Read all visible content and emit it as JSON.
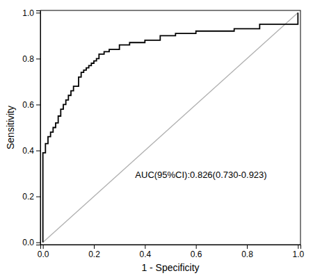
{
  "chart_data": {
    "type": "line",
    "xlabel": "1 - Specificity",
    "ylabel": "Sensitivity",
    "xlim": [
      -0.01,
      1.01
    ],
    "ylim": [
      -0.01,
      1.01
    ],
    "xticks": [
      {
        "value": 0.0,
        "label": "0.0"
      },
      0.2,
      0.4,
      0.6,
      0.8,
      {
        "value": 1.0,
        "label": "1.0"
      }
    ],
    "yticks": [
      {
        "value": 0.0,
        "label": "0.0"
      },
      0.2,
      0.4,
      0.6,
      0.8,
      {
        "value": 1.0,
        "label": "1.0"
      }
    ],
    "series": [
      {
        "type": "line",
        "color": "#b0b0b0",
        "x": [
          0.0,
          1.0
        ],
        "values": [
          0.0,
          1.0
        ]
      },
      {
        "type": "step",
        "color": "#000000",
        "x": [
          0.0,
          0.0,
          0.0,
          0.01,
          0.01,
          0.02,
          0.02,
          0.03,
          0.03,
          0.04,
          0.04,
          0.05,
          0.05,
          0.06,
          0.06,
          0.07,
          0.07,
          0.08,
          0.08,
          0.09,
          0.09,
          0.1,
          0.1,
          0.11,
          0.11,
          0.12,
          0.12,
          0.13,
          0.14,
          0.14,
          0.15,
          0.16,
          0.17,
          0.18,
          0.19,
          0.2,
          0.21,
          0.22,
          0.22,
          0.23,
          0.24,
          0.25,
          0.26,
          0.27,
          0.28,
          0.3,
          0.3,
          0.32,
          0.34,
          0.36,
          0.38,
          0.4,
          0.42,
          0.44,
          0.46,
          0.48,
          0.5,
          0.52,
          0.55,
          0.58,
          0.6,
          0.62,
          0.65,
          0.7,
          0.75,
          0.8,
          0.85,
          0.85,
          0.9,
          0.93,
          0.95,
          0.97,
          1.0
        ],
        "values": [
          0.0,
          0.02,
          0.39,
          0.39,
          0.43,
          0.43,
          0.46,
          0.46,
          0.48,
          0.48,
          0.5,
          0.5,
          0.52,
          0.52,
          0.55,
          0.55,
          0.58,
          0.58,
          0.6,
          0.6,
          0.62,
          0.62,
          0.64,
          0.64,
          0.66,
          0.66,
          0.68,
          0.68,
          0.7,
          0.72,
          0.74,
          0.75,
          0.76,
          0.77,
          0.78,
          0.79,
          0.8,
          0.8,
          0.82,
          0.82,
          0.83,
          0.83,
          0.84,
          0.84,
          0.84,
          0.84,
          0.86,
          0.86,
          0.87,
          0.87,
          0.87,
          0.88,
          0.88,
          0.88,
          0.9,
          0.9,
          0.9,
          0.91,
          0.91,
          0.91,
          0.92,
          0.92,
          0.92,
          0.92,
          0.93,
          0.93,
          0.93,
          0.95,
          0.95,
          0.95,
          0.95,
          0.95,
          1.0
        ]
      }
    ],
    "annotations": [
      {
        "text": "AUC(95%CI):0.826(0.730-0.923)",
        "x": 0.62,
        "y": 0.29,
        "color": "#000000"
      }
    ]
  }
}
